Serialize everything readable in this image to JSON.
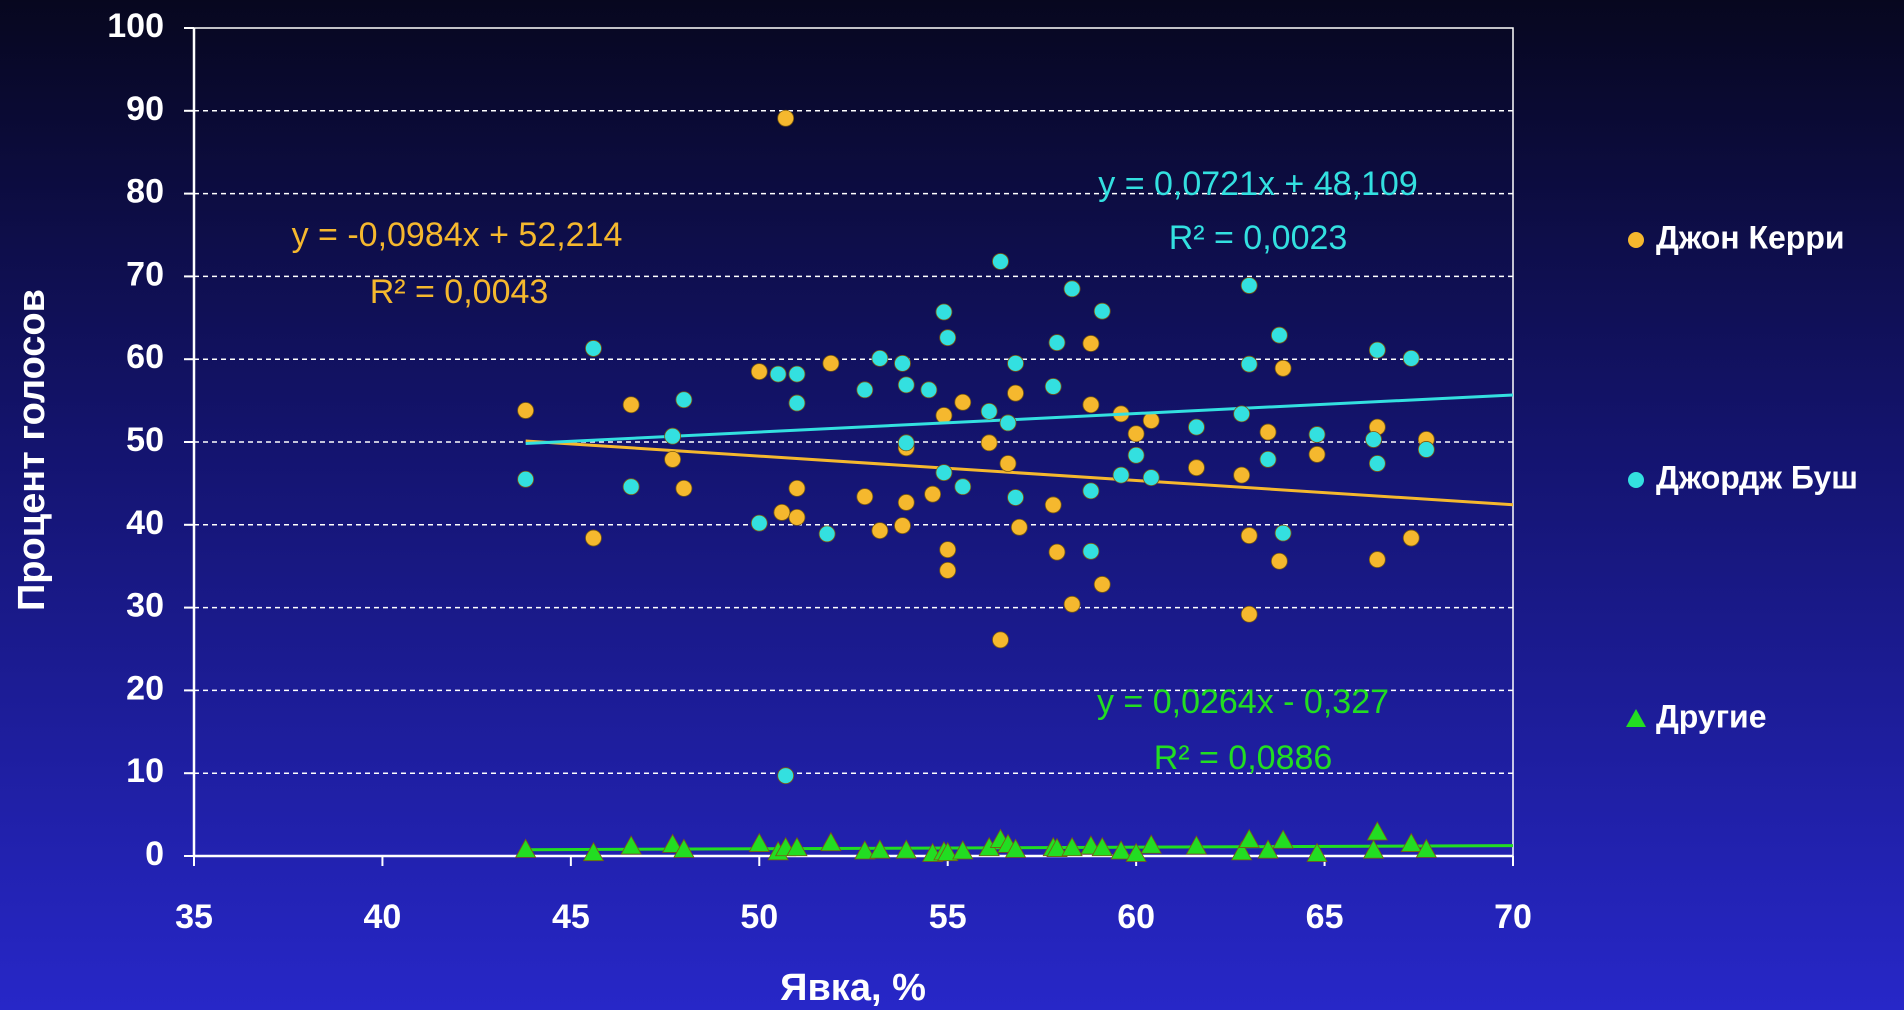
{
  "chart_data": {
    "type": "scatter",
    "xlabel": "Явка, %",
    "ylabel": "Процент голосов",
    "xlim": [
      35,
      70
    ],
    "xticks": [
      35,
      40,
      45,
      50,
      55,
      60,
      65,
      70
    ],
    "ylim": [
      0,
      100
    ],
    "yticks": [
      0,
      10,
      20,
      30,
      40,
      50,
      60,
      70,
      80,
      90,
      100
    ],
    "grid": true,
    "legend": "right",
    "series": [
      {
        "name": "Джон Керри",
        "color": "#f5b82e",
        "marker": "circle",
        "equation": "y = -0,0984x + 52,214",
        "r2": "R² = 0,0043",
        "x": [
          43.8,
          45.6,
          46.6,
          47.7,
          48.0,
          50.0,
          50.7,
          50.6,
          51.0,
          51.0,
          51.9,
          52.8,
          53.2,
          53.8,
          53.9,
          53.9,
          54.6,
          54.9,
          55.0,
          55.0,
          55.4,
          56.1,
          56.4,
          56.6,
          56.8,
          56.9,
          57.8,
          57.9,
          58.3,
          58.8,
          58.8,
          59.1,
          59.6,
          60.0,
          60.4,
          61.6,
          62.8,
          63.0,
          63.0,
          63.5,
          63.8,
          63.9,
          64.8,
          66.4,
          66.4,
          67.3,
          67.7
        ],
        "values": [
          53.8,
          38.4,
          54.5,
          47.9,
          44.4,
          58.5,
          89.1,
          41.5,
          44.4,
          40.9,
          59.5,
          43.4,
          39.3,
          39.9,
          42.7,
          49.3,
          43.7,
          53.2,
          37.0,
          34.5,
          54.8,
          49.9,
          26.1,
          47.4,
          55.9,
          39.7,
          42.4,
          36.7,
          30.4,
          61.9,
          54.5,
          32.8,
          53.4,
          51.0,
          52.6,
          46.9,
          46.0,
          38.7,
          29.2,
          51.2,
          35.6,
          58.9,
          48.5,
          51.8,
          35.8,
          38.4,
          50.3
        ]
      },
      {
        "name": "Джордж Буш",
        "color": "#33e0e0",
        "marker": "circle",
        "equation": "y = 0,0721x + 48,109",
        "r2": "R² = 0,0023",
        "x": [
          43.8,
          45.6,
          46.6,
          47.7,
          48.0,
          50.0,
          50.5,
          51.0,
          51.0,
          50.7,
          51.8,
          52.8,
          53.2,
          53.8,
          53.9,
          53.9,
          54.5,
          54.9,
          55.0,
          54.9,
          55.4,
          56.1,
          56.4,
          56.6,
          56.8,
          56.8,
          57.8,
          57.9,
          58.3,
          58.8,
          58.8,
          59.1,
          59.6,
          60.0,
          60.4,
          61.6,
          62.8,
          63.0,
          63.0,
          63.5,
          63.8,
          63.9,
          64.8,
          66.3,
          66.4,
          66.4,
          67.3,
          67.7
        ],
        "values": [
          45.5,
          61.3,
          44.6,
          50.7,
          55.1,
          40.2,
          58.2,
          58.2,
          54.7,
          9.7,
          38.9,
          56.3,
          60.1,
          59.5,
          56.9,
          49.9,
          56.3,
          65.7,
          62.6,
          46.3,
          44.6,
          53.7,
          71.8,
          52.3,
          59.5,
          43.3,
          56.7,
          62.0,
          68.5,
          36.8,
          44.1,
          65.8,
          46.0,
          48.4,
          45.7,
          51.8,
          53.4,
          59.4,
          68.9,
          47.9,
          62.9,
          39.0,
          50.9,
          50.3,
          47.4,
          61.1,
          60.1,
          49.1
        ]
      },
      {
        "name": "Другие",
        "color": "#22dd22",
        "marker": "triangle",
        "equation": "y = 0,0264x - 0,327",
        "r2": "R² = 0,0886",
        "x": [
          43.8,
          45.6,
          46.6,
          47.7,
          48.0,
          50.0,
          50.5,
          50.7,
          51.0,
          51.9,
          52.8,
          53.2,
          53.9,
          54.6,
          54.9,
          55.0,
          55.4,
          56.1,
          56.4,
          56.6,
          56.8,
          57.8,
          57.9,
          58.3,
          58.8,
          59.1,
          59.6,
          60.0,
          60.4,
          61.6,
          62.8,
          63.0,
          63.5,
          63.9,
          64.8,
          66.3,
          66.4,
          67.3,
          67.7
        ],
        "values": [
          0.8,
          0.4,
          1.2,
          1.4,
          0.8,
          1.5,
          0.5,
          1.0,
          1.0,
          1.6,
          0.6,
          0.7,
          0.7,
          0.3,
          0.5,
          0.4,
          0.6,
          1.0,
          2.0,
          1.4,
          0.8,
          1.0,
          0.9,
          1.0,
          1.2,
          1.0,
          0.6,
          0.3,
          1.3,
          1.2,
          0.5,
          2.0,
          0.7,
          1.9,
          0.3,
          0.7,
          2.9,
          1.5,
          0.8
        ]
      }
    ]
  }
}
